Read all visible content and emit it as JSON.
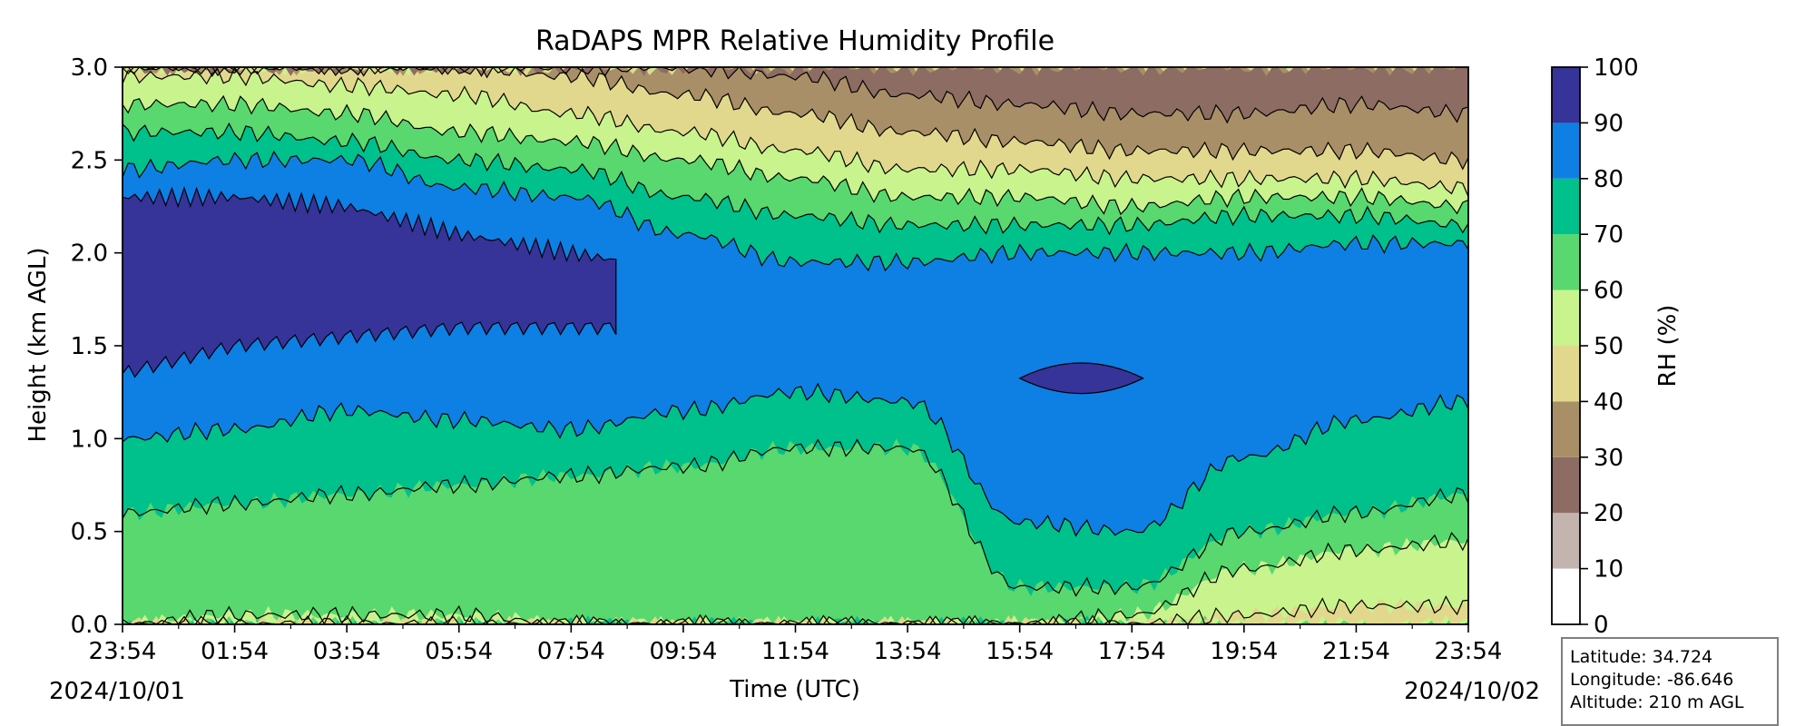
{
  "chart_data": {
    "type": "heatmap",
    "title": "RaDAPS MPR Relative Humidity Profile",
    "xlabel": "Time (UTC)",
    "ylabel": "Height (km AGL)",
    "x_tick_labels": [
      "23:54",
      "01:54",
      "03:54",
      "05:54",
      "07:54",
      "09:54",
      "11:54",
      "13:54",
      "15:54",
      "17:54",
      "19:54",
      "21:54",
      "23:54"
    ],
    "x_start_date": "2024/10/01",
    "x_end_date": "2024/10/02",
    "x_range": [
      "2024-10-01T23:54Z",
      "2024-10-02T23:54Z"
    ],
    "y_tick_labels": [
      "0.0",
      "0.5",
      "1.0",
      "1.5",
      "2.0",
      "2.5",
      "3.0"
    ],
    "ylim": [
      0,
      3.0
    ],
    "colorbar": {
      "label": "RH (%)",
      "levels": [
        0,
        10,
        20,
        30,
        40,
        50,
        60,
        70,
        80,
        90,
        100
      ],
      "tick_labels": [
        "0",
        "10",
        "20",
        "30",
        "40",
        "50",
        "60",
        "70",
        "80",
        "90",
        "100"
      ],
      "colors": [
        "#ffffff",
        "#c4b4b0",
        "#8d6c64",
        "#a98f68",
        "#e1d88d",
        "#c9f38d",
        "#58d86e",
        "#00c08b",
        "#0e7fe3",
        "#363399"
      ]
    },
    "contour_boundaries_km": {
      "comment_free": true,
      "times_utc": [
        "23:54",
        "01:54",
        "03:54",
        "05:54",
        "07:54",
        "09:54",
        "11:54",
        "13:54",
        "15:54",
        "17:54",
        "19:54",
        "21:54",
        "23:54"
      ],
      "rh_80_lower": [
        1.0,
        1.05,
        1.15,
        1.1,
        1.05,
        1.15,
        1.25,
        1.2,
        0.55,
        0.5,
        0.9,
        1.1,
        1.2
      ],
      "rh_80_upper": [
        2.45,
        2.5,
        2.5,
        2.35,
        2.3,
        2.1,
        1.95,
        1.95,
        2.0,
        2.0,
        2.0,
        2.05,
        2.05
      ],
      "rh_90_lower": [
        1.35,
        1.5,
        1.55,
        1.6,
        1.6,
        null,
        null,
        null,
        1.2,
        1.2,
        null,
        null,
        null
      ],
      "rh_90_upper": [
        2.3,
        2.3,
        2.25,
        2.1,
        2.0,
        null,
        null,
        null,
        1.45,
        1.45,
        null,
        null,
        null
      ],
      "rh_70_upper": [
        2.65,
        2.65,
        2.6,
        2.5,
        2.45,
        2.3,
        2.2,
        2.15,
        2.15,
        2.15,
        2.2,
        2.2,
        2.15
      ],
      "rh_60_upper": [
        2.8,
        2.8,
        2.75,
        2.65,
        2.6,
        2.5,
        2.4,
        2.3,
        2.3,
        2.25,
        2.3,
        2.3,
        2.25
      ],
      "rh_50_upper": [
        2.95,
        2.95,
        2.9,
        2.85,
        2.75,
        2.65,
        2.55,
        2.45,
        2.45,
        2.4,
        2.4,
        2.4,
        2.35
      ],
      "rh_40_upper": [
        3.0,
        3.0,
        3.0,
        3.0,
        2.95,
        2.85,
        2.75,
        2.65,
        2.6,
        2.55,
        2.55,
        2.55,
        2.5
      ],
      "rh_30_upper": [
        3.0,
        3.0,
        3.0,
        3.0,
        3.0,
        3.0,
        2.95,
        2.85,
        2.8,
        2.75,
        2.75,
        2.8,
        2.75
      ],
      "rh_70_lower": [
        0.6,
        0.65,
        0.7,
        0.75,
        0.8,
        0.85,
        0.95,
        0.95,
        0.2,
        0.2,
        0.5,
        0.6,
        0.7
      ],
      "rh_60_lower": [
        0.0,
        0.05,
        0.05,
        0.05,
        0.0,
        0.0,
        0.0,
        0.0,
        0.0,
        0.05,
        0.3,
        0.4,
        0.45
      ],
      "rh_50_lower": [
        null,
        null,
        null,
        null,
        null,
        null,
        null,
        null,
        null,
        0.0,
        0.05,
        0.1,
        0.1
      ]
    }
  },
  "info": {
    "latitude": "Latitude: 34.724",
    "longitude": "Longitude: -86.646",
    "altitude": "Altitude: 210 m AGL"
  }
}
